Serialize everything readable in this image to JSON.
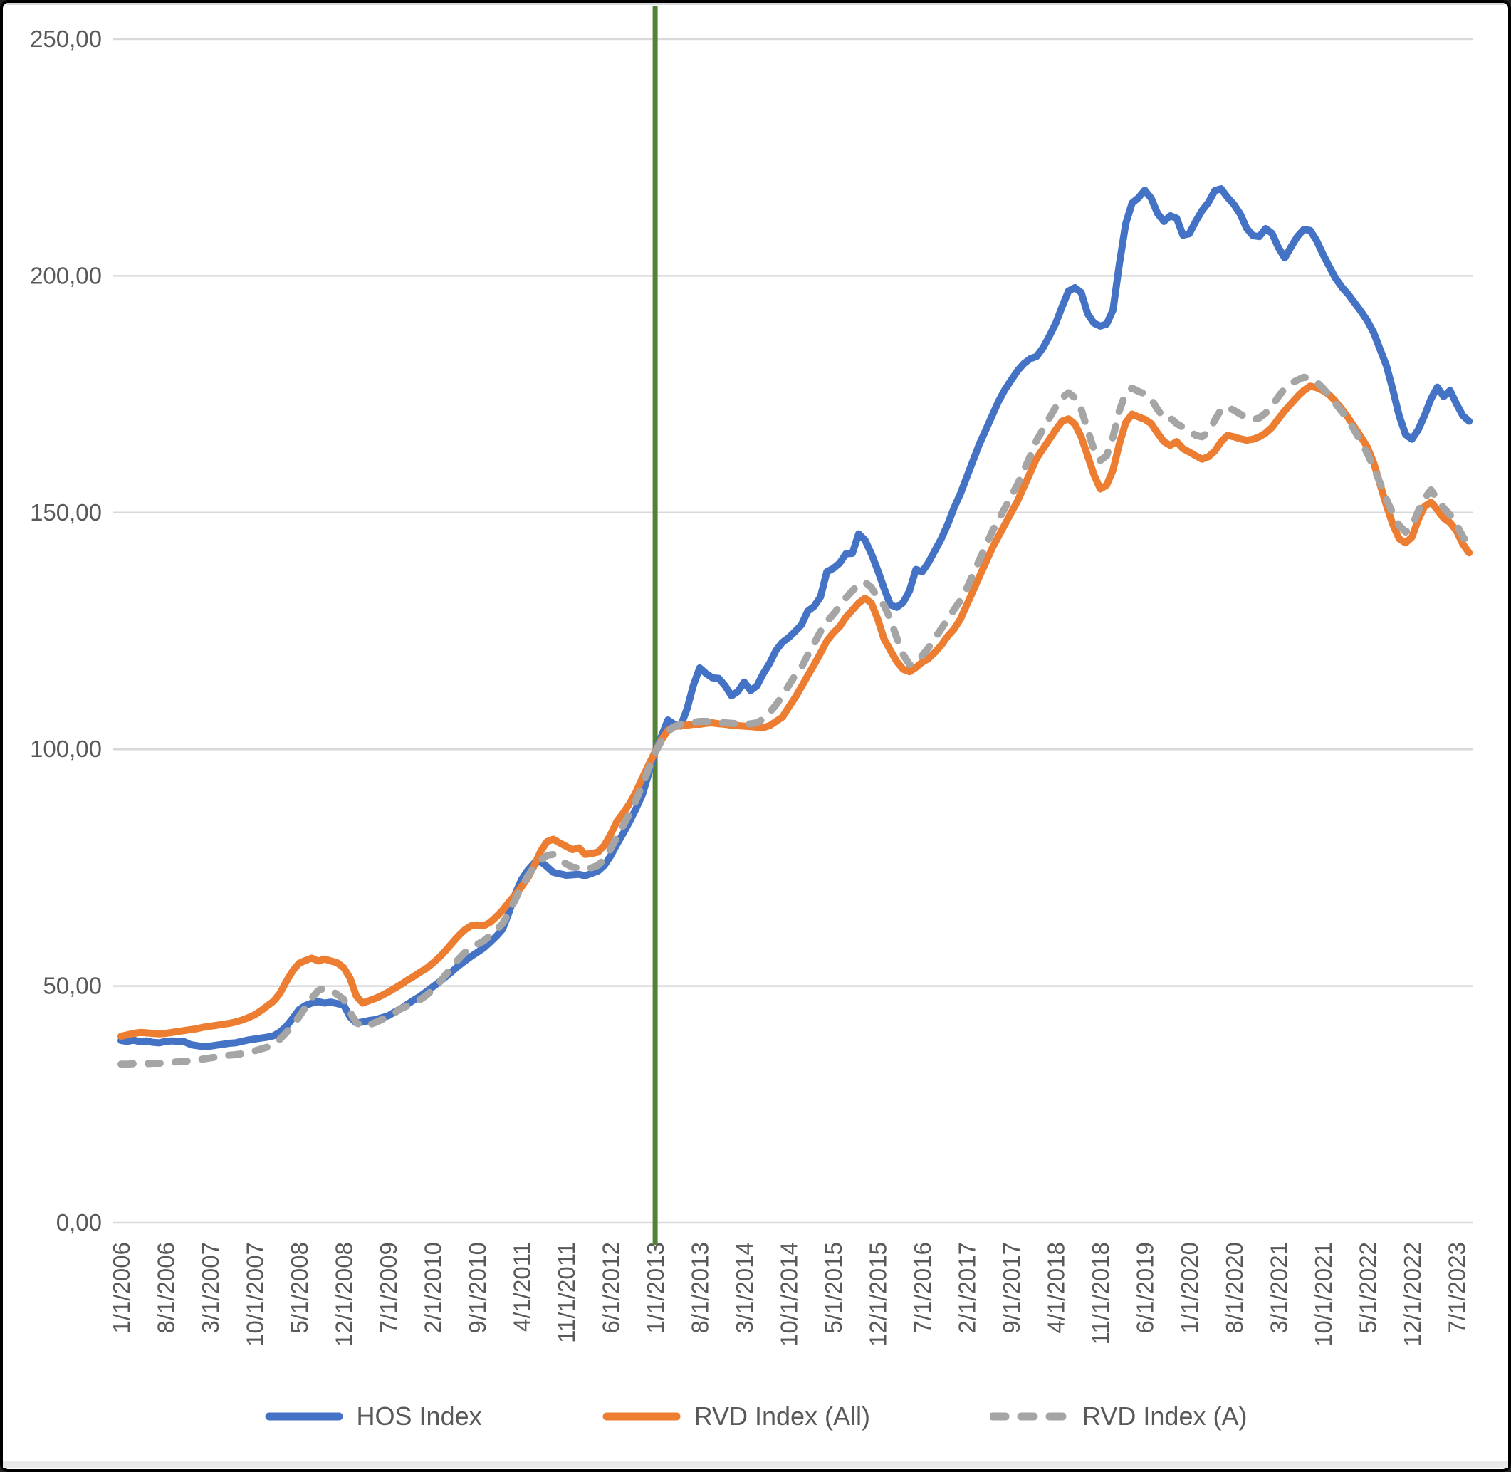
{
  "window": {
    "frame_color": "#000000",
    "background": "#FFFFFF",
    "bottom_strip_color": "#E9E9E9"
  },
  "chart_data": {
    "type": "line",
    "title": "",
    "xlabel": "",
    "ylabel": "",
    "x_unit": "monthly",
    "points_per_series": 213,
    "x_tick_step": 7,
    "x_tick_labels": [
      "1/1/2006",
      "8/1/2006",
      "3/1/2007",
      "10/1/2007",
      "5/1/2008",
      "12/1/2008",
      "7/1/2009",
      "2/1/2010",
      "9/1/2010",
      "4/1/2011",
      "11/1/2011",
      "6/1/2012",
      "1/1/2013",
      "8/1/2013",
      "3/1/2014",
      "10/1/2014",
      "5/1/2015",
      "12/1/2015",
      "7/1/2016",
      "2/1/2017",
      "9/1/2017",
      "4/1/2018",
      "11/1/2018",
      "6/1/2019",
      "1/1/2020",
      "8/1/2020",
      "3/1/2021",
      "10/1/2021",
      "5/1/2022",
      "12/1/2022",
      "7/1/2023"
    ],
    "y_tick_labels": [
      "0,00",
      "50,00",
      "100,00",
      "150,00",
      "200,00",
      "250,00"
    ],
    "y_tick_values": [
      0,
      50,
      100,
      150,
      200,
      250
    ],
    "ylim": [
      0,
      250
    ],
    "grid": true,
    "legend_position": "bottom",
    "colors": {
      "gridline": "#D9D9D9",
      "axis_text": "#595959",
      "vline": "#548235"
    },
    "annotations": [
      {
        "type": "vline",
        "x_label": "1/1/2013",
        "x_index": 84,
        "color": "#548235"
      }
    ],
    "series": [
      {
        "name": "HOS Index",
        "color": "#4472C4",
        "style": "solid",
        "values": [
          38.5,
          38.3,
          38.6,
          38.2,
          38.4,
          38.1,
          38.0,
          38.3,
          38.4,
          38.3,
          38.2,
          37.6,
          37.4,
          37.2,
          37.3,
          37.5,
          37.7,
          37.9,
          38.0,
          38.3,
          38.6,
          38.8,
          39.0,
          39.2,
          39.5,
          40.3,
          41.5,
          43.2,
          45.0,
          45.9,
          46.4,
          46.7,
          46.4,
          46.6,
          46.3,
          46.0,
          43.5,
          42.2,
          42.4,
          42.7,
          42.9,
          43.3,
          43.7,
          44.5,
          45.2,
          46.1,
          47.0,
          47.8,
          48.8,
          49.8,
          50.8,
          51.9,
          53.0,
          54.2,
          55.2,
          56.2,
          57.1,
          58.0,
          59.2,
          60.5,
          62.0,
          65.5,
          69.5,
          72.5,
          74.5,
          76.0,
          76.3,
          75.2,
          74.0,
          73.7,
          73.4,
          73.5,
          73.6,
          73.3,
          73.8,
          74.3,
          75.5,
          77.5,
          80.0,
          82.3,
          84.8,
          87.5,
          90.5,
          95.0,
          99.5,
          102.8,
          106.2,
          105.3,
          104.9,
          108.5,
          113.5,
          117.2,
          116.0,
          115.1,
          115.0,
          113.4,
          111.3,
          112.2,
          114.2,
          112.4,
          113.4,
          116.0,
          118.2,
          120.9,
          122.6,
          123.6,
          124.9,
          126.3,
          129.2,
          130.2,
          132.2,
          137.5,
          138.2,
          139.3,
          141.3,
          141.4,
          145.5,
          144.2,
          141.3,
          137.8,
          134.0,
          130.5,
          130.0,
          131.0,
          133.5,
          138.0,
          137.5,
          139.5,
          142.0,
          144.5,
          147.5,
          151.0,
          154.0,
          157.5,
          161.0,
          164.5,
          167.5,
          170.5,
          173.5,
          176.0,
          178.0,
          180.0,
          181.5,
          182.5,
          183.0,
          184.8,
          187.3,
          190.0,
          193.5,
          196.8,
          197.5,
          196.5,
          192.0,
          190.0,
          189.4,
          189.8,
          192.8,
          202.5,
          211.0,
          215.4,
          216.5,
          218.1,
          216.4,
          213.2,
          211.5,
          212.7,
          212.2,
          208.6,
          208.9,
          211.5,
          213.8,
          215.5,
          218.0,
          218.4,
          216.6,
          215.1,
          213.1,
          210.1,
          208.5,
          208.3,
          210.0,
          209.0,
          206.0,
          203.8,
          206.1,
          208.3,
          209.8,
          209.6,
          207.5,
          204.6,
          202.0,
          199.5,
          197.6,
          196.1,
          194.3,
          192.5,
          190.5,
          188.0,
          184.5,
          181.0,
          176.0,
          170.5,
          166.5,
          165.5,
          167.5,
          170.5,
          174.0,
          176.5,
          174.5,
          175.8,
          173.0,
          170.5,
          169.3
        ]
      },
      {
        "name": "RVD Index (All)",
        "color": "#ED7D31",
        "style": "solid",
        "values": [
          39.4,
          39.7,
          40.0,
          40.2,
          40.1,
          40.0,
          39.9,
          40.0,
          40.2,
          40.4,
          40.6,
          40.8,
          41.0,
          41.3,
          41.5,
          41.7,
          41.9,
          42.1,
          42.4,
          42.8,
          43.3,
          43.9,
          44.8,
          45.8,
          46.8,
          48.5,
          51.0,
          53.2,
          54.8,
          55.4,
          55.9,
          55.3,
          55.7,
          55.3,
          54.9,
          53.9,
          51.7,
          47.9,
          46.4,
          46.9,
          47.4,
          48.0,
          48.7,
          49.5,
          50.3,
          51.2,
          52.0,
          52.9,
          53.7,
          54.8,
          56.0,
          57.4,
          59.0,
          60.5,
          61.8,
          62.7,
          62.9,
          62.7,
          63.4,
          64.6,
          66.0,
          67.7,
          69.3,
          71.0,
          72.9,
          75.5,
          78.5,
          80.5,
          81.0,
          80.2,
          79.5,
          78.8,
          79.2,
          77.8,
          78.0,
          78.3,
          79.7,
          82.0,
          84.8,
          86.6,
          88.6,
          91.0,
          94.0,
          96.8,
          99.5,
          102.0,
          104.0,
          104.8,
          105.0,
          105.1,
          105.3,
          105.3,
          105.5,
          105.6,
          105.4,
          105.3,
          105.1,
          105.0,
          104.9,
          104.8,
          104.7,
          104.6,
          105.0,
          105.9,
          106.8,
          108.9,
          110.9,
          113.2,
          115.6,
          117.9,
          120.3,
          122.9,
          124.6,
          125.9,
          127.9,
          129.4,
          130.9,
          131.9,
          130.9,
          127.5,
          123.3,
          120.9,
          118.5,
          116.9,
          116.4,
          117.3,
          118.4,
          119.2,
          120.5,
          122.0,
          123.9,
          125.4,
          127.5,
          130.5,
          133.5,
          136.5,
          139.5,
          142.5,
          145.0,
          147.5,
          150.0,
          152.5,
          155.5,
          158.5,
          161.5,
          163.5,
          165.5,
          167.5,
          169.3,
          169.8,
          168.7,
          166.0,
          162.0,
          158.0,
          155.0,
          155.8,
          159.0,
          164.5,
          169.0,
          170.8,
          170.2,
          169.7,
          168.8,
          166.8,
          165.0,
          164.2,
          165.0,
          163.5,
          162.8,
          162.0,
          161.3,
          161.8,
          163.0,
          165.0,
          166.3,
          166.0,
          165.6,
          165.3,
          165.5,
          166.0,
          166.8,
          168.0,
          169.8,
          171.5,
          173.0,
          174.5,
          175.8,
          176.7,
          176.4,
          175.8,
          174.9,
          173.5,
          171.8,
          170.0,
          168.0,
          166.0,
          163.8,
          160.5,
          156.0,
          151.5,
          147.5,
          144.5,
          143.6,
          144.8,
          148.5,
          151.3,
          152.2,
          150.6,
          148.8,
          147.9,
          146.2,
          143.4,
          141.5
        ]
      },
      {
        "name": "RVD Index (A)",
        "color": "#A5A5A5",
        "style": "dashed",
        "values": [
          33.5,
          33.5,
          33.6,
          33.6,
          33.6,
          33.7,
          33.7,
          33.7,
          33.9,
          34.0,
          34.1,
          34.2,
          34.4,
          34.6,
          34.8,
          35.0,
          35.2,
          35.4,
          35.5,
          35.7,
          36.0,
          36.3,
          36.7,
          37.1,
          37.7,
          38.8,
          40.2,
          41.8,
          43.5,
          45.5,
          47.5,
          49.0,
          49.6,
          49.1,
          48.2,
          47.2,
          44.5,
          42.3,
          41.4,
          41.8,
          42.3,
          42.9,
          43.5,
          44.3,
          45.2,
          45.8,
          46.3,
          47.1,
          48.0,
          49.2,
          50.6,
          52.3,
          54.0,
          55.6,
          57.0,
          58.0,
          58.8,
          59.5,
          60.6,
          61.8,
          63.2,
          65.5,
          68.3,
          71.0,
          73.3,
          75.2,
          76.6,
          77.6,
          77.8,
          76.8,
          75.8,
          75.1,
          75.0,
          74.8,
          75.0,
          75.5,
          76.8,
          79.0,
          81.5,
          84.0,
          86.5,
          89.3,
          92.5,
          96.0,
          99.3,
          101.8,
          103.8,
          104.8,
          105.3,
          105.5,
          105.7,
          105.9,
          105.9,
          105.8,
          105.6,
          105.6,
          105.5,
          105.4,
          105.3,
          105.4,
          105.6,
          106.4,
          107.8,
          109.4,
          111.3,
          113.5,
          115.6,
          117.3,
          119.9,
          122.4,
          124.9,
          127.0,
          128.5,
          130.2,
          132.0,
          133.5,
          134.8,
          135.3,
          134.2,
          132.0,
          130.4,
          127.4,
          123.5,
          120.0,
          117.9,
          118.4,
          119.8,
          121.5,
          123.5,
          125.5,
          127.5,
          129.5,
          131.5,
          134.0,
          137.0,
          140.0,
          143.0,
          146.0,
          148.5,
          151.0,
          153.5,
          156.0,
          159.0,
          162.0,
          165.3,
          167.6,
          170.0,
          172.3,
          174.3,
          175.3,
          174.3,
          171.8,
          167.5,
          163.3,
          161.0,
          162.0,
          166.0,
          171.5,
          175.3,
          176.3,
          175.6,
          175.1,
          174.0,
          171.8,
          170.0,
          170.0,
          168.8,
          168.0,
          167.3,
          166.3,
          166.0,
          167.0,
          169.5,
          171.8,
          172.3,
          171.6,
          170.8,
          170.0,
          169.6,
          170.0,
          171.0,
          172.5,
          174.5,
          176.2,
          177.3,
          178.0,
          178.6,
          178.3,
          177.6,
          176.3,
          174.8,
          173.0,
          171.3,
          169.5,
          167.3,
          165.0,
          162.5,
          159.5,
          156.3,
          152.8,
          149.8,
          147.3,
          145.9,
          147.0,
          150.3,
          153.0,
          154.8,
          152.8,
          151.0,
          149.5,
          147.5,
          145.0,
          142.9
        ]
      }
    ]
  }
}
